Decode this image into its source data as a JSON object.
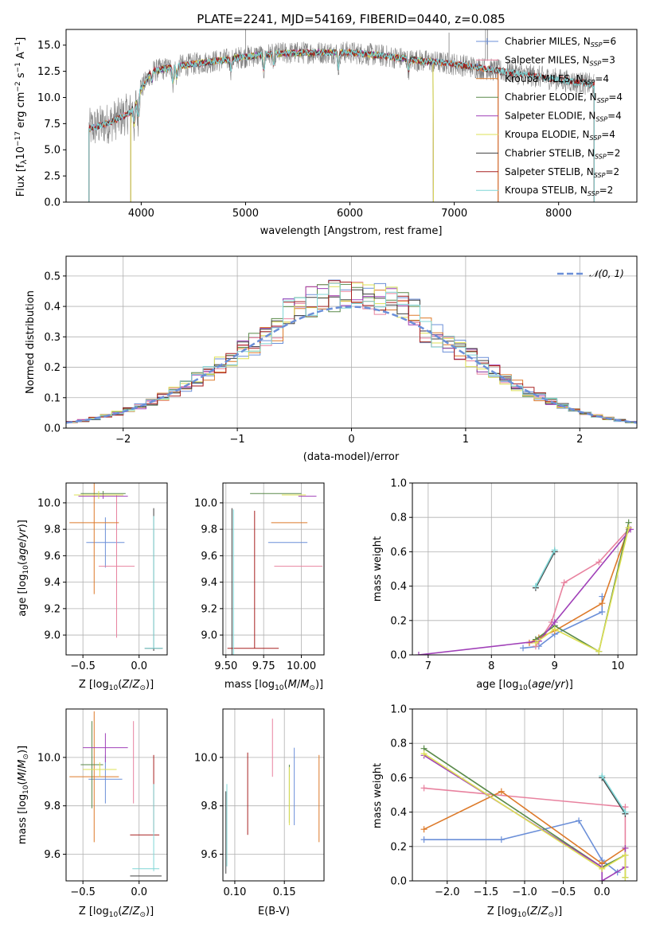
{
  "chart_data": [
    {
      "id": "spectrum",
      "type": "line",
      "title": "PLATE=2241, MJD=54169, FIBERID=0440, z=0.085",
      "xlabel": "wavelength [Angstrom, rest frame]",
      "ylabel": "Flux [f_λ10^-17 erg cm^-2 s^-1 A^-1]",
      "xlim": [
        3280,
        8750
      ],
      "ylim": [
        0,
        16.5
      ],
      "xticks": [
        4000,
        5000,
        6000,
        7000,
        8000
      ],
      "yticks": [
        0.0,
        2.5,
        5.0,
        7.5,
        10.0,
        12.5,
        15.0
      ],
      "data_x_range": [
        3500,
        8340
      ],
      "model_segments": [
        {
          "name": "Chabrier MILES",
          "x": [
            3500,
            7420
          ]
        },
        {
          "name": "Salpeter MILES",
          "x": [
            3500,
            7420
          ]
        },
        {
          "name": "Kroupa MILES",
          "x": [
            3500,
            7420
          ]
        },
        {
          "name": "Chabrier ELODIE",
          "x": [
            3900,
            6800
          ]
        },
        {
          "name": "Salpeter ELODIE",
          "x": [
            3900,
            6800
          ]
        },
        {
          "name": "Kroupa ELODIE",
          "x": [
            3900,
            6800
          ]
        },
        {
          "name": "Chabrier STELIB",
          "x": [
            3500,
            8340
          ]
        },
        {
          "name": "Salpeter STELIB",
          "x": [
            3500,
            8340
          ]
        },
        {
          "name": "Kroupa STELIB",
          "x": [
            3500,
            8340
          ]
        }
      ],
      "continuum": {
        "x": [
          3500,
          3700,
          3900,
          4000,
          4100,
          4300,
          4500,
          4800,
          5000,
          5300,
          5600,
          6000,
          6300,
          6600,
          7000,
          7400,
          7800,
          8340
        ],
        "y": [
          7.0,
          7.6,
          8.6,
          10.8,
          12.5,
          12.9,
          13.2,
          13.6,
          13.9,
          14.2,
          14.3,
          14.3,
          14.0,
          13.6,
          13.2,
          12.6,
          12.0,
          11.2
        ]
      },
      "legend": [
        {
          "label": "Chabrier MILES, N",
          "sub": "SSP",
          "suffix": "=6",
          "color": "#6b8fd8"
        },
        {
          "label": "Salpeter MILES, N",
          "sub": "SSP",
          "suffix": "=3",
          "color": "#e8829f"
        },
        {
          "label": "Kroupa MILES, N",
          "sub": "SSP",
          "suffix": "=4",
          "color": "#dd7a2a"
        },
        {
          "label": "Chabrier ELODIE, N",
          "sub": "SSP",
          "suffix": "=4",
          "color": "#5a8a4a"
        },
        {
          "label": "Salpeter ELODIE, N",
          "sub": "SSP",
          "suffix": "=4",
          "color": "#a040b8"
        },
        {
          "label": "Kroupa ELODIE, N",
          "sub": "SSP",
          "suffix": "=4",
          "color": "#dde055"
        },
        {
          "label": "Chabrier STELIB, N",
          "sub": "SSP",
          "suffix": "=2",
          "color": "#404040"
        },
        {
          "label": "Salpeter STELIB, N",
          "sub": "SSP",
          "suffix": "=2",
          "color": "#a82020"
        },
        {
          "label": "Kroupa STELIB, N",
          "sub": "SSP",
          "suffix": "=2",
          "color": "#7fd6d6"
        }
      ],
      "legend_position": "right",
      "grid": false
    },
    {
      "id": "residuals",
      "type": "histogram",
      "xlabel": "(data-model)/error",
      "ylabel": "Normed distribution",
      "xlim": [
        -2.5,
        2.5
      ],
      "ylim": [
        0,
        0.565
      ],
      "xticks": [
        -2,
        -1,
        0,
        1,
        2
      ],
      "yticks": [
        0.0,
        0.1,
        0.2,
        0.3,
        0.4,
        0.5
      ],
      "gaussian_label": "𝒩(0, 1)",
      "bin_width": 0.1,
      "bin_start": -2.5,
      "grid": true,
      "legend_position": "top-right"
    },
    {
      "id": "age_vs_Z",
      "type": "errorbar",
      "xlabel": "Z [log10(Z/Z⊙)]",
      "ylabel": "age [log10(age/yr)]",
      "xlim": [
        -0.65,
        0.25
      ],
      "ylim": [
        8.85,
        10.15
      ],
      "xticks": [
        -0.5,
        0.0
      ],
      "yticks": [
        9.0,
        9.2,
        9.4,
        9.6,
        9.8,
        10.0
      ],
      "points": [
        {
          "x": -0.3,
          "y": 9.7,
          "xerr": 0.17,
          "yerr": 0.19,
          "color": "#6b8fd8"
        },
        {
          "x": -0.2,
          "y": 9.52,
          "xerr": 0.16,
          "yerr": 0.54,
          "color": "#e8829f"
        },
        {
          "x": -0.4,
          "y": 9.85,
          "xerr": 0.22,
          "yerr": 0.54,
          "color": "#dd7a2a"
        },
        {
          "x": -0.32,
          "y": 10.07,
          "xerr": 0.2,
          "yerr": 0.02,
          "color": "#5a8a4a"
        },
        {
          "x": -0.32,
          "y": 10.05,
          "xerr": 0.22,
          "yerr": 0.02,
          "color": "#a040b8"
        },
        {
          "x": -0.36,
          "y": 10.06,
          "xerr": 0.22,
          "yerr": 0.03,
          "color": "#dde055"
        },
        {
          "x": 0.13,
          "y": 9.42,
          "xerr": 0.0,
          "yerr": 0.54,
          "color": "#404040"
        },
        {
          "x": 0.13,
          "y": 8.9,
          "xerr": 0.08,
          "yerr": 0.0,
          "color": "#404040"
        },
        {
          "x": 0.13,
          "y": 9.4,
          "xerr": 0.0,
          "yerr": 0.5,
          "color": "#7fd6d6"
        },
        {
          "x": 0.13,
          "y": 8.9,
          "xerr": 0.08,
          "yerr": 0.0,
          "color": "#7fd6d6"
        }
      ]
    },
    {
      "id": "age_vs_mass",
      "type": "errorbar",
      "xlabel": "mass [log10(M/M⊙)]",
      "ylabel": "",
      "xlim": [
        9.48,
        10.15
      ],
      "ylim": [
        8.85,
        10.15
      ],
      "xticks": [
        9.5,
        9.75,
        10.0
      ],
      "yticks": [
        9.0,
        9.2,
        9.4,
        9.6,
        9.8,
        10.0
      ],
      "points": [
        {
          "x": 9.91,
          "y": 9.7,
          "xerr": 0.13,
          "yerr": 0.0,
          "color": "#6b8fd8"
        },
        {
          "x": 9.98,
          "y": 9.52,
          "xerr": 0.16,
          "yerr": 0.0,
          "color": "#e8829f"
        },
        {
          "x": 9.92,
          "y": 9.85,
          "xerr": 0.12,
          "yerr": 0.0,
          "color": "#dd7a2a"
        },
        {
          "x": 9.83,
          "y": 10.07,
          "xerr": 0.17,
          "yerr": 0.0,
          "color": "#5a8a4a"
        },
        {
          "x": 10.04,
          "y": 10.05,
          "xerr": 0.06,
          "yerr": 0.0,
          "color": "#a040b8"
        },
        {
          "x": 9.95,
          "y": 10.06,
          "xerr": 0.08,
          "yerr": 0.0,
          "color": "#dde055"
        },
        {
          "x": 9.53,
          "y": 8.9,
          "xerr": 0.0,
          "yerr": 0.0,
          "color": "#404040"
        },
        {
          "x": 9.54,
          "y": 9.4,
          "xerr": 0.0,
          "yerr": 0.56,
          "color": "#404040"
        },
        {
          "x": 9.68,
          "y": 8.9,
          "xerr": 0.17,
          "yerr": 0.0,
          "color": "#a82020"
        },
        {
          "x": 9.69,
          "y": 9.42,
          "xerr": 0.0,
          "yerr": 0.52,
          "color": "#a82020"
        },
        {
          "x": 9.55,
          "y": 9.4,
          "xerr": 0.0,
          "yerr": 0.55,
          "color": "#7fd6d6"
        }
      ]
    },
    {
      "id": "massweight_vs_age",
      "type": "line",
      "xlabel": "age [log10(age/yr)]",
      "ylabel": "mass weight",
      "xlim": [
        6.75,
        10.3
      ],
      "ylim": [
        0,
        1.0
      ],
      "xticks": [
        7,
        8,
        9,
        10
      ],
      "yticks": [
        0.0,
        0.2,
        0.4,
        0.6,
        0.8,
        1.0
      ],
      "series": [
        {
          "color": "#6b8fd8",
          "x": [
            8.5,
            8.75,
            9.0,
            9.75,
            9.75
          ],
          "y": [
            0.04,
            0.05,
            0.12,
            0.25,
            0.34
          ]
        },
        {
          "color": "#e8829f",
          "x": [
            8.7,
            8.95,
            9.15,
            9.7,
            10.17
          ],
          "y": [
            0.05,
            0.19,
            0.42,
            0.54,
            0.73
          ]
        },
        {
          "color": "#dd7a2a",
          "x": [
            8.6,
            8.75,
            9.0,
            9.75,
            10.17
          ],
          "y": [
            0.07,
            0.1,
            0.14,
            0.3,
            0.74
          ]
        },
        {
          "color": "#5a8a4a",
          "x": [
            8.7,
            9.0,
            9.7,
            10.17
          ],
          "y": [
            0.09,
            0.17,
            0.02,
            0.77
          ]
        },
        {
          "color": "#a040b8",
          "x": [
            6.85,
            8.75,
            9.0,
            10.2
          ],
          "y": [
            0.0,
            0.08,
            0.19,
            0.73
          ]
        },
        {
          "color": "#dde055",
          "x": [
            8.7,
            9.0,
            9.7,
            10.17
          ],
          "y": [
            0.07,
            0.15,
            0.02,
            0.74
          ]
        },
        {
          "color": "#404040",
          "x": [
            8.7,
            9.0
          ],
          "y": [
            0.39,
            0.6
          ]
        },
        {
          "color": "#7fd6d6",
          "x": [
            8.7,
            9.0
          ],
          "y": [
            0.4,
            0.61
          ]
        }
      ]
    },
    {
      "id": "mass_vs_Z",
      "type": "errorbar",
      "xlabel": "Z [log10(Z/Z⊙)]",
      "ylabel": "mass [log10(M/M⊙)]",
      "xlim": [
        -0.65,
        0.25
      ],
      "ylim": [
        9.49,
        10.2
      ],
      "xticks": [
        -0.5,
        0.0
      ],
      "yticks": [
        9.6,
        9.8,
        10.0
      ],
      "points": [
        {
          "x": -0.3,
          "y": 9.91,
          "xerr": 0.15,
          "yerr": 0.1,
          "color": "#6b8fd8"
        },
        {
          "x": -0.05,
          "y": 9.98,
          "xerr": 0.0,
          "yerr": 0.17,
          "color": "#e8829f"
        },
        {
          "x": -0.4,
          "y": 9.92,
          "xerr": 0.22,
          "yerr": 0.27,
          "color": "#dd7a2a"
        },
        {
          "x": -0.42,
          "y": 9.97,
          "xerr": 0.1,
          "yerr": 0.18,
          "color": "#5a8a4a"
        },
        {
          "x": -0.3,
          "y": 10.04,
          "xerr": 0.2,
          "yerr": 0.06,
          "color": "#a040b8"
        },
        {
          "x": -0.35,
          "y": 9.95,
          "xerr": 0.15,
          "yerr": 0.03,
          "color": "#dde055"
        },
        {
          "x": 0.06,
          "y": 9.51,
          "xerr": 0.14,
          "yerr": 0.0,
          "color": "#404040"
        },
        {
          "x": 0.13,
          "y": 9.85,
          "xerr": 0.0,
          "yerr": 0.16,
          "color": "#a82020"
        },
        {
          "x": 0.05,
          "y": 9.68,
          "xerr": 0.13,
          "yerr": 0.0,
          "color": "#a82020"
        },
        {
          "x": 0.06,
          "y": 9.54,
          "xerr": 0.12,
          "yerr": 0.0,
          "color": "#7fd6d6"
        },
        {
          "x": 0.13,
          "y": 9.71,
          "xerr": 0.0,
          "yerr": 0.18,
          "color": "#7fd6d6"
        }
      ]
    },
    {
      "id": "mass_vs_EBV",
      "type": "errorbar",
      "xlabel": "E(B-V)",
      "ylabel": "",
      "xlim": [
        0.088,
        0.19
      ],
      "ylim": [
        9.49,
        10.2
      ],
      "xticks": [
        0.1,
        0.15
      ],
      "yticks": [
        9.6,
        9.8,
        10.0
      ],
      "points": [
        {
          "x": 0.16,
          "y": 9.88,
          "xerr": 0.0,
          "yerr": 0.16,
          "color": "#6b8fd8"
        },
        {
          "x": 0.138,
          "y": 10.04,
          "xerr": 0.0,
          "yerr": 0.12,
          "color": "#e8829f"
        },
        {
          "x": 0.185,
          "y": 9.83,
          "xerr": 0.0,
          "yerr": 0.18,
          "color": "#dd7a2a"
        },
        {
          "x": 0.155,
          "y": 9.85,
          "xerr": 0.0,
          "yerr": 0.12,
          "color": "#5a8a4a"
        },
        {
          "x": 0.155,
          "y": 9.84,
          "xerr": 0.0,
          "yerr": 0.12,
          "color": "#dde055"
        },
        {
          "x": 0.091,
          "y": 9.69,
          "xerr": 0.0,
          "yerr": 0.17,
          "color": "#404040"
        },
        {
          "x": 0.113,
          "y": 9.85,
          "xerr": 0.0,
          "yerr": 0.17,
          "color": "#a82020"
        },
        {
          "x": 0.092,
          "y": 9.72,
          "xerr": 0.0,
          "yerr": 0.17,
          "color": "#7fd6d6"
        }
      ]
    },
    {
      "id": "massweight_vs_Z",
      "type": "line",
      "xlabel": "Z [log10(Z/Z⊙)]",
      "ylabel": "mass weight",
      "xlim": [
        -2.45,
        0.45
      ],
      "ylim": [
        0,
        1.0
      ],
      "xticks": [
        -2.0,
        -1.5,
        -1.0,
        -0.5,
        0.0
      ],
      "yticks": [
        0.0,
        0.2,
        0.4,
        0.6,
        0.8,
        1.0
      ],
      "series": [
        {
          "color": "#6b8fd8",
          "x": [
            -2.3,
            -1.3,
            -0.3,
            0.0,
            0.2
          ],
          "y": [
            0.24,
            0.24,
            0.35,
            0.12,
            0.05
          ]
        },
        {
          "color": "#e8829f",
          "x": [
            -2.3,
            0.3,
            0.3
          ],
          "y": [
            0.54,
            0.43,
            0.19
          ]
        },
        {
          "color": "#dd7a2a",
          "x": [
            -2.3,
            -1.3,
            0.0,
            0.3
          ],
          "y": [
            0.3,
            0.52,
            0.1,
            0.19
          ]
        },
        {
          "color": "#5a8a4a",
          "x": [
            -2.3,
            0.0,
            0.3,
            0.3
          ],
          "y": [
            0.77,
            0.08,
            0.15,
            0.02
          ]
        },
        {
          "color": "#a040b8",
          "x": [
            -2.3,
            0.0,
            0.0,
            0.3,
            0.3
          ],
          "y": [
            0.73,
            0.08,
            0.0,
            0.08,
            0.19
          ]
        },
        {
          "color": "#dde055",
          "x": [
            -2.3,
            0.0,
            0.3,
            0.3
          ],
          "y": [
            0.74,
            0.07,
            0.15,
            0.02
          ]
        },
        {
          "color": "#404040",
          "x": [
            0.0,
            0.3
          ],
          "y": [
            0.6,
            0.39
          ]
        },
        {
          "color": "#7fd6d6",
          "x": [
            0.0,
            0.3
          ],
          "y": [
            0.61,
            0.4
          ]
        }
      ]
    }
  ]
}
